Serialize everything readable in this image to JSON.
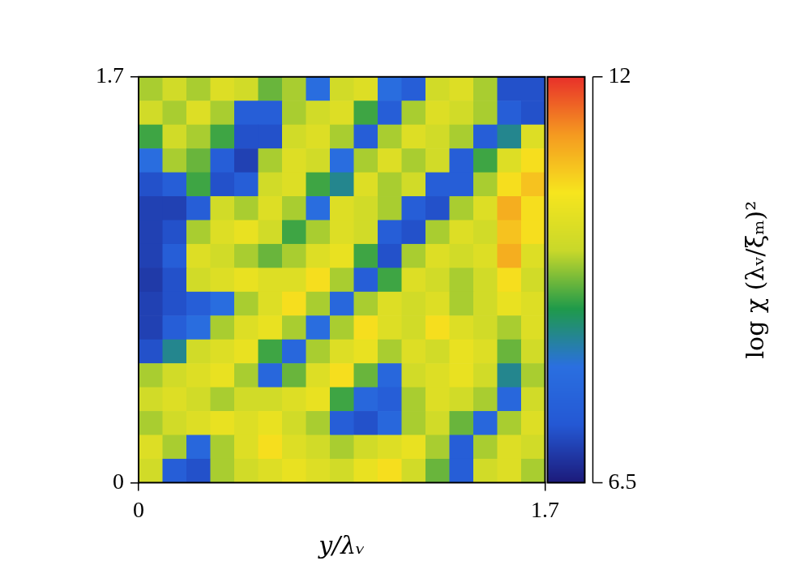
{
  "chart_data": {
    "type": "heatmap",
    "x_label": "y/λᵥ",
    "xlim": [
      0,
      1.7
    ],
    "xticks": [
      0,
      1.7
    ],
    "ylim": [
      0,
      1.7
    ],
    "yticks": [
      0,
      1.7
    ],
    "grid": false,
    "x": [
      0.05,
      0.15,
      0.25,
      0.35,
      0.45,
      0.55,
      0.65,
      0.75,
      0.85,
      0.95,
      1.05,
      1.15,
      1.25,
      1.35,
      1.45,
      1.55,
      1.65
    ],
    "y": [
      1.65,
      1.55,
      1.45,
      1.35,
      1.25,
      1.15,
      1.05,
      0.95,
      0.85,
      0.75,
      0.65,
      0.55,
      0.45,
      0.35,
      0.25,
      0.15,
      0.05
    ],
    "values": [
      [
        9.5,
        9.8,
        9.5,
        10,
        9.8,
        9.2,
        9.5,
        8,
        9.8,
        10,
        8,
        7.5,
        9.8,
        10,
        9.5,
        7.2,
        7.2
      ],
      [
        9.8,
        9.5,
        10,
        9.5,
        7.5,
        7.5,
        9.5,
        9.8,
        10,
        9,
        7.5,
        9.5,
        10,
        9.8,
        9.5,
        7.5,
        7.2
      ],
      [
        9,
        9.8,
        9.5,
        9,
        7.2,
        7.2,
        9.8,
        10,
        9.5,
        7.5,
        9.5,
        10,
        9.8,
        9.5,
        7.5,
        8.5,
        10
      ],
      [
        8,
        9.5,
        9.2,
        7.5,
        7,
        9.5,
        10,
        9.8,
        8,
        9.5,
        10,
        9.5,
        9.8,
        7.5,
        9,
        10,
        10.5
      ],
      [
        7.2,
        7.5,
        9,
        7.2,
        7.5,
        9.8,
        10,
        9,
        8.5,
        10,
        9.5,
        9.8,
        7.5,
        7.5,
        9.5,
        10.5,
        10.8
      ],
      [
        7,
        7,
        7.5,
        9.8,
        9.5,
        10,
        9.5,
        8,
        10,
        9.8,
        9.5,
        7.5,
        7.2,
        9.5,
        10,
        11,
        10.5
      ],
      [
        7,
        7.2,
        9.5,
        10,
        10.2,
        9.8,
        9,
        9.5,
        10,
        9.8,
        7.5,
        7.2,
        9.5,
        10,
        9.8,
        10.8,
        10.5
      ],
      [
        7,
        7.5,
        10,
        9.8,
        9.5,
        9.2,
        9.5,
        10,
        10.2,
        9,
        7.2,
        9.5,
        10,
        9.8,
        10,
        11,
        10
      ],
      [
        6.9,
        7.2,
        9.8,
        10,
        10.2,
        10,
        10,
        10.5,
        9.5,
        7.5,
        9,
        10,
        9.8,
        9.5,
        9.8,
        10.5,
        9.8
      ],
      [
        7,
        7.2,
        7.5,
        8,
        9.5,
        10,
        10.5,
        9.5,
        7.8,
        9.5,
        10,
        9.8,
        10,
        9.5,
        9.8,
        10.2,
        10
      ],
      [
        7,
        7.5,
        8,
        9.5,
        10,
        10.2,
        9.5,
        8,
        9.5,
        10.5,
        10,
        9.8,
        10.5,
        10,
        9.8,
        9.5,
        10
      ],
      [
        7.2,
        8.5,
        9.8,
        10,
        10.2,
        9,
        7.8,
        9.5,
        10,
        10.2,
        9.5,
        10,
        9.8,
        10.2,
        10,
        9.2,
        9.8
      ],
      [
        9.5,
        9.8,
        10,
        10.2,
        9.5,
        7.8,
        9.2,
        10,
        10.5,
        9.2,
        7.8,
        9.8,
        10,
        10.2,
        9.8,
        8.5,
        9.5
      ],
      [
        9.8,
        10,
        9.8,
        9.5,
        9.8,
        9.8,
        10,
        10.2,
        9,
        7.8,
        7.5,
        9.5,
        10,
        9.8,
        9.5,
        7.8,
        9.8
      ],
      [
        9.5,
        9.8,
        10,
        10.2,
        10,
        10.2,
        9.8,
        9.5,
        7.5,
        7.2,
        7.8,
        9.5,
        9.8,
        9.2,
        7.8,
        9.5,
        10
      ],
      [
        10,
        9.5,
        7.8,
        9.5,
        10,
        10.5,
        10,
        9.8,
        9.5,
        9.8,
        10,
        10.2,
        9.5,
        7.5,
        9.5,
        10,
        9.8
      ],
      [
        9.8,
        7.5,
        7.2,
        9.5,
        9.8,
        10,
        10.2,
        10,
        9.8,
        10.2,
        10.5,
        9.8,
        9.2,
        7.5,
        9.8,
        10,
        9.5
      ]
    ],
    "colorbar": {
      "label": "log χ (λᵥ/ξₘ)²",
      "range": [
        6.5,
        12
      ],
      "ticks": [
        6.5,
        12
      ],
      "colors": [
        "#1c1a7a",
        "#2458d4",
        "#2a6fe0",
        "#1f9a4a",
        "#c8d82a",
        "#f6e51e",
        "#f59a20",
        "#e8302a"
      ]
    }
  }
}
